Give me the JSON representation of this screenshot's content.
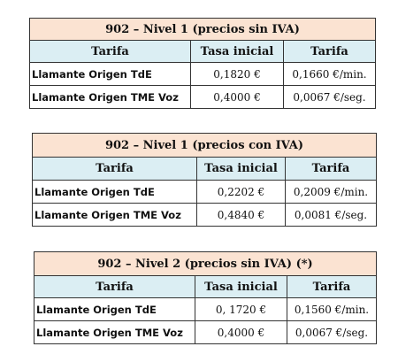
{
  "tables": [
    {
      "title": "902 – Nivel 1 (precios sin IVA)",
      "headers": [
        "Tarifa",
        "Tasa inicial",
        "Tarifa"
      ],
      "rows": [
        {
          "label": "Llamante Origen TdE",
          "tasa": "0,1820 €",
          "tarifa": "0,1660 €/min."
        },
        {
          "label": "Llamante Origen TME Voz",
          "tasa": "0,4000 €",
          "tarifa": "0,0067 €/seg."
        }
      ]
    },
    {
      "title": "902 – Nivel 1 (precios con IVA)",
      "headers": [
        "Tarifa",
        "Tasa inicial",
        "Tarifa"
      ],
      "rows": [
        {
          "label": "Llamante Origen TdE",
          "tasa": "0,2202 €",
          "tarifa": "0,2009 €/min."
        },
        {
          "label": "Llamante Origen TME Voz",
          "tasa": "0,4840 €",
          "tarifa": "0,0081 €/seg."
        }
      ]
    },
    {
      "title": "902 – Nivel 2 (precios sin IVA) (*)",
      "headers": [
        "Tarifa",
        "Tasa inicial",
        "Tarifa"
      ],
      "rows": [
        {
          "label": "Llamante Origen TdE",
          "tasa": "0, 1720 €",
          "tarifa": "0,1560 €/min."
        },
        {
          "label": "Llamante Origen TME Voz",
          "tasa": "0,4000 €",
          "tarifa": "0,0067 €/seg."
        }
      ]
    }
  ],
  "colors": {
    "title_bg": "#fbe3d2",
    "header_bg": "#dbeef3",
    "border": "#333333"
  }
}
